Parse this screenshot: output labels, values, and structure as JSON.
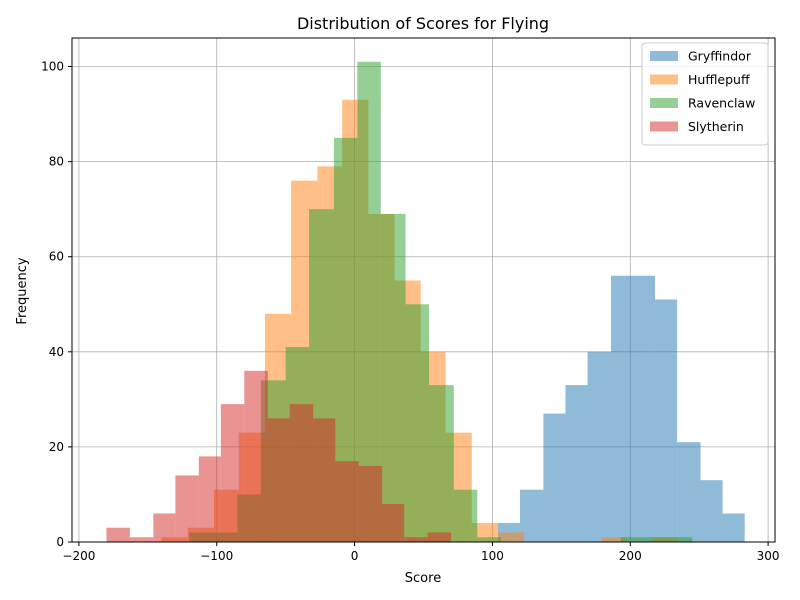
{
  "chart_data": {
    "type": "bar",
    "title": "Distribution of Scores for Flying",
    "xlabel": "Score",
    "ylabel": "Frequency",
    "xlim": [
      -205,
      305
    ],
    "ylim": [
      0,
      106
    ],
    "xticks": [
      -200,
      -100,
      0,
      100,
      200,
      300
    ],
    "yticks": [
      0,
      20,
      40,
      60,
      80,
      100
    ],
    "grid": true,
    "legend_position": "top-right",
    "series": [
      {
        "name": "Gryffindor",
        "color": "#1f77b4",
        "alpha": 0.5,
        "bins": [
          [
            104,
            120,
            4
          ],
          [
            120,
            137,
            11
          ],
          [
            137,
            153,
            27
          ],
          [
            153,
            169,
            33
          ],
          [
            169,
            186,
            40
          ],
          [
            186,
            202,
            56
          ],
          [
            202,
            218,
            56
          ],
          [
            218,
            234,
            51
          ],
          [
            234,
            251,
            21
          ],
          [
            251,
            267,
            13
          ],
          [
            267,
            283,
            6
          ]
        ]
      },
      {
        "name": "Hufflepuff",
        "color": "#ff7f0e",
        "alpha": 0.5,
        "bins": [
          [
            -140,
            -121,
            1
          ],
          [
            -121,
            -102,
            3
          ],
          [
            -102,
            -84,
            11
          ],
          [
            -84,
            -65,
            23
          ],
          [
            -65,
            -46,
            48
          ],
          [
            -46,
            -27,
            76
          ],
          [
            -27,
            -9,
            79
          ],
          [
            -9,
            10,
            93
          ],
          [
            10,
            29,
            69
          ],
          [
            29,
            48,
            55
          ],
          [
            48,
            66,
            40
          ],
          [
            66,
            85,
            23
          ],
          [
            85,
            104,
            4
          ],
          [
            104,
            123,
            2
          ],
          [
            123,
            179,
            0
          ],
          [
            179,
            198,
            1
          ],
          [
            198,
            216,
            0
          ],
          [
            216,
            235,
            1
          ]
        ]
      },
      {
        "name": "Ravenclaw",
        "color": "#2ca02c",
        "alpha": 0.5,
        "bins": [
          [
            -120,
            -102,
            2
          ],
          [
            -102,
            -85,
            2
          ],
          [
            -85,
            -68,
            10
          ],
          [
            -68,
            -50,
            34
          ],
          [
            -50,
            -33,
            41
          ],
          [
            -33,
            -15,
            70
          ],
          [
            -15,
            2,
            85
          ],
          [
            2,
            19,
            101
          ],
          [
            19,
            37,
            69
          ],
          [
            37,
            54,
            50
          ],
          [
            54,
            72,
            33
          ],
          [
            72,
            89,
            11
          ],
          [
            89,
            106,
            1
          ],
          [
            106,
            193,
            0
          ],
          [
            193,
            210,
            1
          ],
          [
            210,
            228,
            1
          ],
          [
            228,
            245,
            1
          ]
        ]
      },
      {
        "name": "Slytherin",
        "color": "#d62728",
        "alpha": 0.5,
        "bins": [
          [
            -180,
            -163,
            3
          ],
          [
            -163,
            -146,
            1
          ],
          [
            -146,
            -130,
            6
          ],
          [
            -130,
            -113,
            14
          ],
          [
            -113,
            -97,
            18
          ],
          [
            -97,
            -80,
            29
          ],
          [
            -80,
            -63,
            36
          ],
          [
            -63,
            -47,
            26
          ],
          [
            -47,
            -30,
            29
          ],
          [
            -30,
            -14,
            26
          ],
          [
            -14,
            3,
            17
          ],
          [
            3,
            20,
            16
          ],
          [
            20,
            36,
            8
          ],
          [
            36,
            53,
            1
          ],
          [
            53,
            70,
            2
          ]
        ]
      }
    ]
  }
}
